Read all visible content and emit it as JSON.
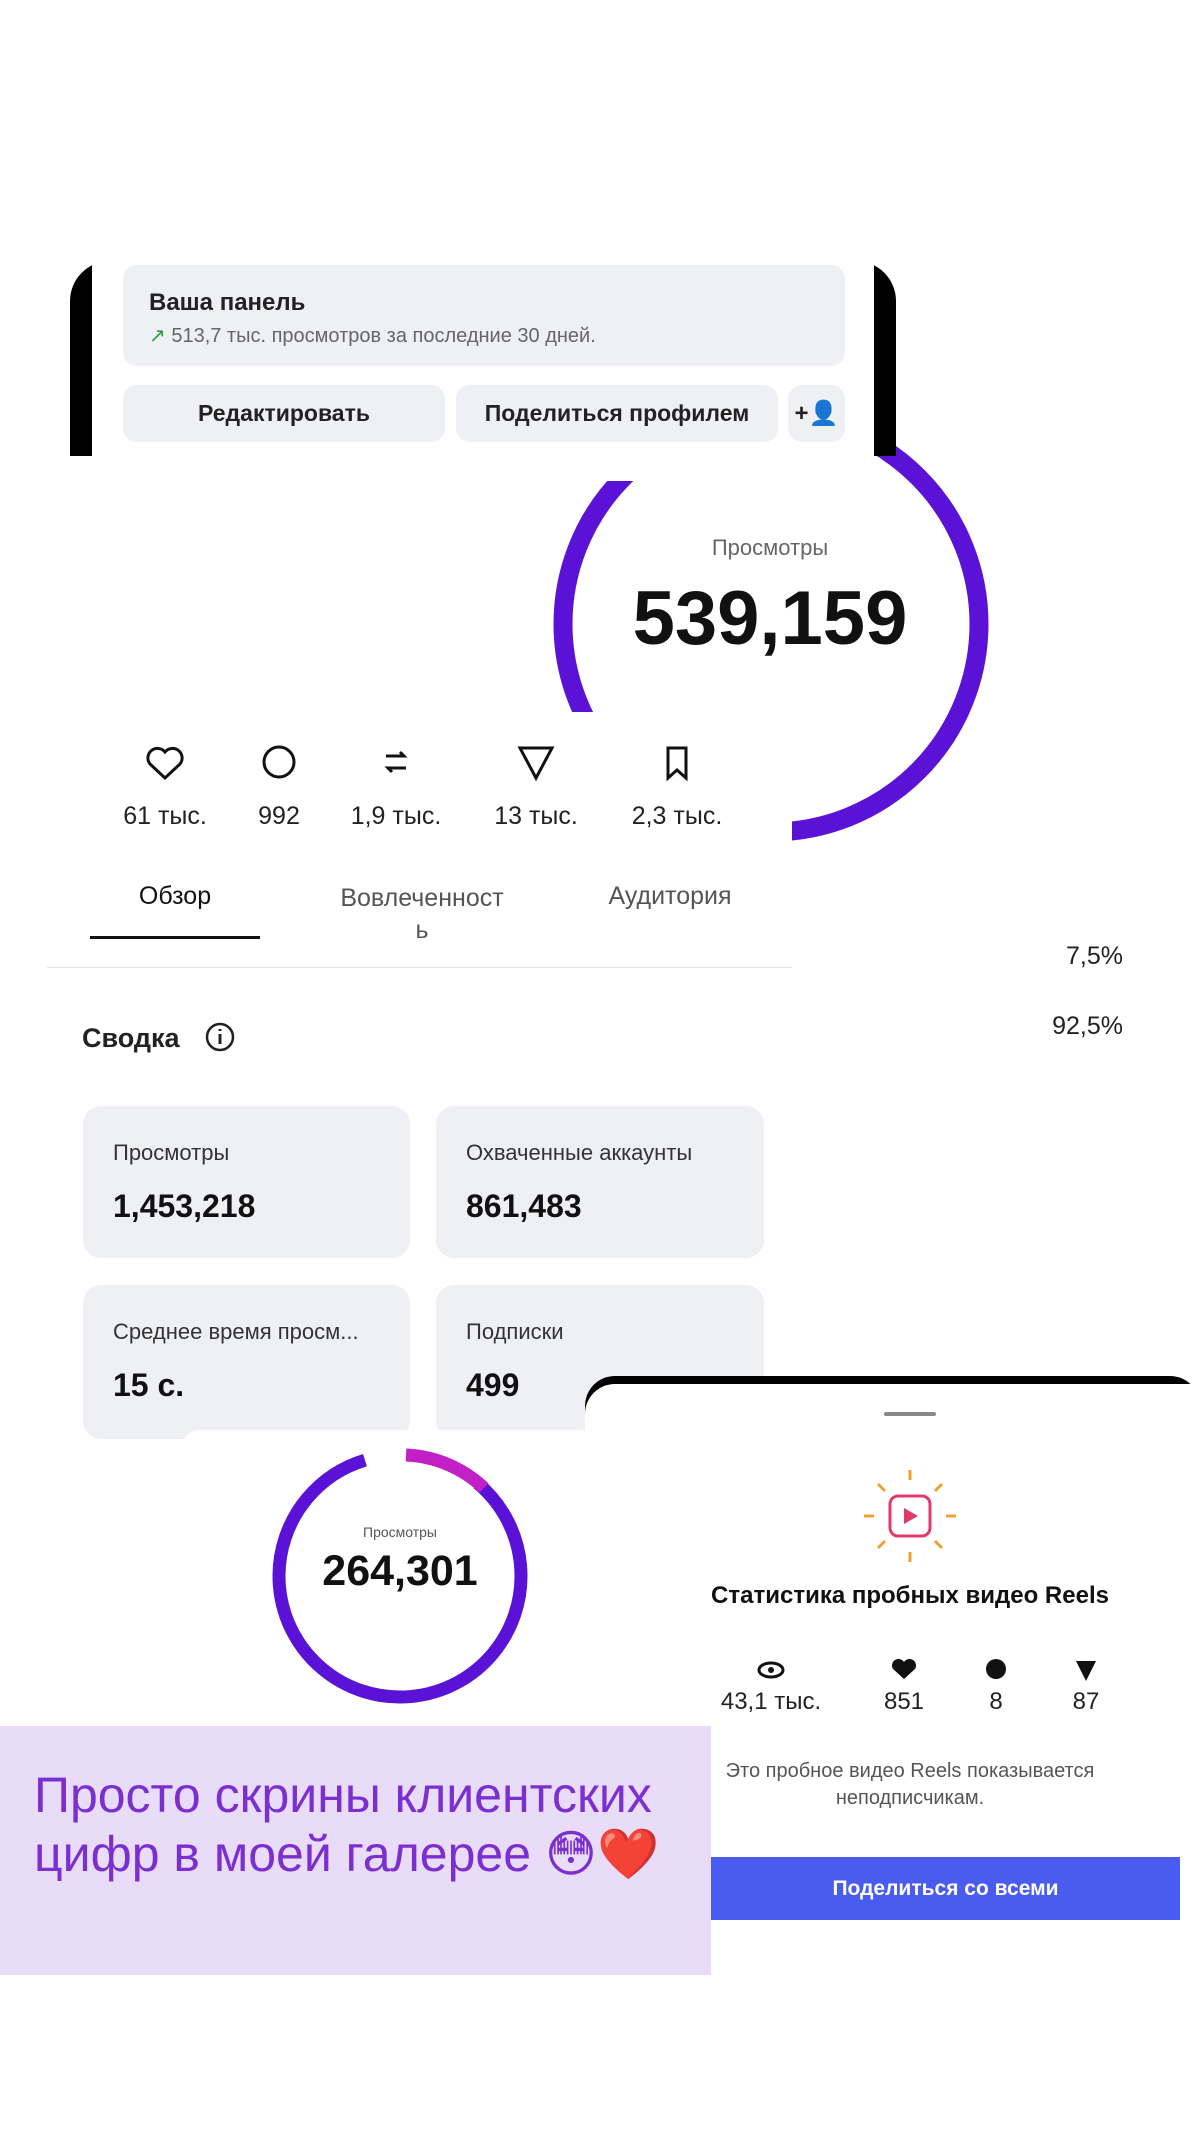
{
  "panel": {
    "title": "Ваша панель",
    "subtitle": "513,7 тыс. просмотров за последние 30 дней.",
    "buttons": [
      "Редактировать",
      "Поделиться профилем"
    ]
  },
  "views_ring": {
    "label": "Просмотры",
    "value": "539,159"
  },
  "stats": [
    "61 тыс.",
    "992",
    "1,9 тыс.",
    "13 тыс.",
    "2,3 тыс."
  ],
  "tabs": [
    "Обзор",
    "Вовлеченность",
    "Аудитория"
  ],
  "percentages": [
    "7,5%",
    "92,5%"
  ],
  "summary": {
    "title": "Сводка",
    "cards": [
      {
        "label": "Просмотры",
        "value": "1,453,218"
      },
      {
        "label": "Охваченные аккаунты",
        "value": "861,483"
      },
      {
        "label": "Среднее время просм...",
        "value": "15 с."
      },
      {
        "label": "Подписки",
        "value": "499"
      }
    ]
  },
  "small_ring": {
    "label": "Просмотры",
    "value": "264,301"
  },
  "reels": {
    "title": "Статистика пробных видео Reels",
    "stats": [
      "43,1 тыс.",
      "851",
      "8",
      "87"
    ],
    "note": "Это пробное видео Reels показывается неподписчикам.",
    "button": "Поделиться со всеми"
  },
  "caption": "Просто скрины клиентских цифр в моей галерее 😳❤️"
}
